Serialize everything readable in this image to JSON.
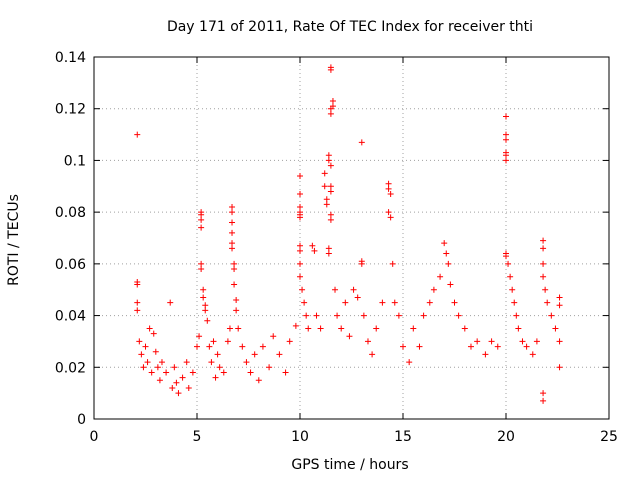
{
  "chart_data": {
    "type": "scatter",
    "title": "Day 171 of 2011, Rate Of TEC Index for receiver thti",
    "xlabel": "GPS time / hours",
    "ylabel": "ROTI / TECUs",
    "xlim": [
      0,
      25
    ],
    "ylim": [
      0,
      0.14
    ],
    "xticks": [
      0,
      5,
      10,
      15,
      20,
      25
    ],
    "xtick_labels": [
      "0",
      "5",
      "10",
      "15",
      "20",
      "25"
    ],
    "yticks": [
      0,
      0.02,
      0.04,
      0.06,
      0.08,
      0.1,
      0.12,
      0.14
    ],
    "ytick_labels": [
      "0",
      "0.02",
      "0.04",
      "0.06",
      "0.08",
      "0.1",
      "0.12",
      "0.14"
    ],
    "grid": true,
    "marker": "+",
    "color": "#ff0000",
    "series": [
      {
        "name": "ROTI",
        "points": [
          [
            2.1,
            0.11
          ],
          [
            2.1,
            0.053
          ],
          [
            2.1,
            0.052
          ],
          [
            2.1,
            0.045
          ],
          [
            2.1,
            0.042
          ],
          [
            2.2,
            0.03
          ],
          [
            2.3,
            0.025
          ],
          [
            2.4,
            0.02
          ],
          [
            2.5,
            0.028
          ],
          [
            2.6,
            0.022
          ],
          [
            2.7,
            0.035
          ],
          [
            2.8,
            0.018
          ],
          [
            2.9,
            0.033
          ],
          [
            3.0,
            0.026
          ],
          [
            3.1,
            0.02
          ],
          [
            3.2,
            0.015
          ],
          [
            3.3,
            0.022
          ],
          [
            3.5,
            0.018
          ],
          [
            3.7,
            0.045
          ],
          [
            3.8,
            0.012
          ],
          [
            3.9,
            0.02
          ],
          [
            4.0,
            0.014
          ],
          [
            4.1,
            0.01
          ],
          [
            4.3,
            0.016
          ],
          [
            4.5,
            0.022
          ],
          [
            4.6,
            0.012
          ],
          [
            4.8,
            0.018
          ],
          [
            5.0,
            0.028
          ],
          [
            5.1,
            0.032
          ],
          [
            5.2,
            0.08
          ],
          [
            5.2,
            0.079
          ],
          [
            5.2,
            0.077
          ],
          [
            5.2,
            0.074
          ],
          [
            5.2,
            0.06
          ],
          [
            5.2,
            0.058
          ],
          [
            5.3,
            0.05
          ],
          [
            5.3,
            0.047
          ],
          [
            5.4,
            0.044
          ],
          [
            5.4,
            0.042
          ],
          [
            5.5,
            0.038
          ],
          [
            5.6,
            0.028
          ],
          [
            5.7,
            0.022
          ],
          [
            5.8,
            0.03
          ],
          [
            5.9,
            0.016
          ],
          [
            6.0,
            0.025
          ],
          [
            6.1,
            0.02
          ],
          [
            6.3,
            0.018
          ],
          [
            6.5,
            0.03
          ],
          [
            6.6,
            0.035
          ],
          [
            6.7,
            0.082
          ],
          [
            6.7,
            0.08
          ],
          [
            6.7,
            0.076
          ],
          [
            6.7,
            0.072
          ],
          [
            6.7,
            0.068
          ],
          [
            6.7,
            0.066
          ],
          [
            6.8,
            0.06
          ],
          [
            6.8,
            0.058
          ],
          [
            6.8,
            0.052
          ],
          [
            6.9,
            0.046
          ],
          [
            6.9,
            0.042
          ],
          [
            7.0,
            0.035
          ],
          [
            7.2,
            0.028
          ],
          [
            7.4,
            0.022
          ],
          [
            7.6,
            0.018
          ],
          [
            7.8,
            0.025
          ],
          [
            8.0,
            0.015
          ],
          [
            8.2,
            0.028
          ],
          [
            8.5,
            0.02
          ],
          [
            8.7,
            0.032
          ],
          [
            9.0,
            0.025
          ],
          [
            9.3,
            0.018
          ],
          [
            9.5,
            0.03
          ],
          [
            9.8,
            0.036
          ],
          [
            10.0,
            0.094
          ],
          [
            10.0,
            0.087
          ],
          [
            10.0,
            0.082
          ],
          [
            10.0,
            0.08
          ],
          [
            10.0,
            0.079
          ],
          [
            10.0,
            0.078
          ],
          [
            10.0,
            0.067
          ],
          [
            10.0,
            0.065
          ],
          [
            10.0,
            0.06
          ],
          [
            10.0,
            0.055
          ],
          [
            10.1,
            0.05
          ],
          [
            10.2,
            0.045
          ],
          [
            10.3,
            0.04
          ],
          [
            10.4,
            0.035
          ],
          [
            10.6,
            0.067
          ],
          [
            10.7,
            0.065
          ],
          [
            10.8,
            0.04
          ],
          [
            11.0,
            0.035
          ],
          [
            11.2,
            0.095
          ],
          [
            11.2,
            0.09
          ],
          [
            11.3,
            0.085
          ],
          [
            11.3,
            0.083
          ],
          [
            11.4,
            0.1
          ],
          [
            11.4,
            0.102
          ],
          [
            11.4,
            0.066
          ],
          [
            11.4,
            0.064
          ],
          [
            11.5,
            0.136
          ],
          [
            11.5,
            0.135
          ],
          [
            11.5,
            0.12
          ],
          [
            11.5,
            0.118
          ],
          [
            11.5,
            0.098
          ],
          [
            11.5,
            0.09
          ],
          [
            11.5,
            0.088
          ],
          [
            11.5,
            0.079
          ],
          [
            11.5,
            0.077
          ],
          [
            11.6,
            0.123
          ],
          [
            11.6,
            0.121
          ],
          [
            11.7,
            0.05
          ],
          [
            11.8,
            0.04
          ],
          [
            12.0,
            0.035
          ],
          [
            12.2,
            0.045
          ],
          [
            12.4,
            0.032
          ],
          [
            12.6,
            0.05
          ],
          [
            12.8,
            0.047
          ],
          [
            13.0,
            0.107
          ],
          [
            13.0,
            0.061
          ],
          [
            13.0,
            0.06
          ],
          [
            13.1,
            0.04
          ],
          [
            13.3,
            0.03
          ],
          [
            13.5,
            0.025
          ],
          [
            13.7,
            0.035
          ],
          [
            14.0,
            0.045
          ],
          [
            14.3,
            0.091
          ],
          [
            14.3,
            0.089
          ],
          [
            14.4,
            0.087
          ],
          [
            14.3,
            0.08
          ],
          [
            14.4,
            0.078
          ],
          [
            14.5,
            0.06
          ],
          [
            14.6,
            0.045
          ],
          [
            14.8,
            0.04
          ],
          [
            15.0,
            0.028
          ],
          [
            15.3,
            0.022
          ],
          [
            15.5,
            0.035
          ],
          [
            15.8,
            0.028
          ],
          [
            16.0,
            0.04
          ],
          [
            16.3,
            0.045
          ],
          [
            16.5,
            0.05
          ],
          [
            16.8,
            0.055
          ],
          [
            17.0,
            0.068
          ],
          [
            17.1,
            0.064
          ],
          [
            17.2,
            0.06
          ],
          [
            17.3,
            0.052
          ],
          [
            17.5,
            0.045
          ],
          [
            17.7,
            0.04
          ],
          [
            18.0,
            0.035
          ],
          [
            18.3,
            0.028
          ],
          [
            18.6,
            0.03
          ],
          [
            19.0,
            0.025
          ],
          [
            19.3,
            0.03
          ],
          [
            19.6,
            0.028
          ],
          [
            20.0,
            0.117
          ],
          [
            20.0,
            0.11
          ],
          [
            20.0,
            0.108
          ],
          [
            20.0,
            0.103
          ],
          [
            20.0,
            0.102
          ],
          [
            20.0,
            0.1
          ],
          [
            20.0,
            0.064
          ],
          [
            20.0,
            0.063
          ],
          [
            20.1,
            0.06
          ],
          [
            20.2,
            0.055
          ],
          [
            20.3,
            0.05
          ],
          [
            20.4,
            0.045
          ],
          [
            20.5,
            0.04
          ],
          [
            20.6,
            0.035
          ],
          [
            20.8,
            0.03
          ],
          [
            21.0,
            0.028
          ],
          [
            21.3,
            0.025
          ],
          [
            21.5,
            0.03
          ],
          [
            21.8,
            0.069
          ],
          [
            21.8,
            0.066
          ],
          [
            21.8,
            0.06
          ],
          [
            21.8,
            0.055
          ],
          [
            21.9,
            0.05
          ],
          [
            21.8,
            0.01
          ],
          [
            21.8,
            0.007
          ],
          [
            22.0,
            0.045
          ],
          [
            22.2,
            0.04
          ],
          [
            22.4,
            0.035
          ],
          [
            22.6,
            0.047
          ],
          [
            22.6,
            0.044
          ],
          [
            22.6,
            0.03
          ],
          [
            22.6,
            0.02
          ]
        ]
      }
    ]
  }
}
